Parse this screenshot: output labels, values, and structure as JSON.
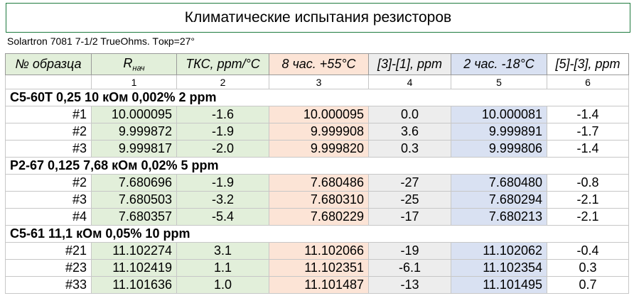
{
  "title": "Климатические испытания резисторов",
  "note": "Solartron 7081 7-1/2 TrueOhms. Tокр=27°",
  "headers": [
    "№ образца",
    "R",
    "ТКС, ppm/°C",
    "8 час. +55°C",
    "[3]-[1], ppm",
    "2 час. -18°C",
    "[5]-[3], ppm"
  ],
  "r_subscript": "нач",
  "column_numbers": [
    "1",
    "2",
    "3",
    "4",
    "5",
    "6"
  ],
  "groups": [
    {
      "label": "С5-60Т 0,25 10 кОм 0,002% 2 ppm",
      "rows": [
        [
          "#1",
          "10.000095",
          "-1.6",
          "10.000095",
          "0.0",
          "10.000081",
          "-1.4"
        ],
        [
          "#2",
          "9.999872",
          "-1.9",
          "9.999908",
          "3.6",
          "9.999891",
          "-1.7"
        ],
        [
          "#3",
          "9.999817",
          "-2.0",
          "9.999820",
          "0.3",
          "9.999806",
          "-1.4"
        ]
      ]
    },
    {
      "label": "Р2-67 0,125 7,68 кОм 0,02% 5 ppm",
      "rows": [
        [
          "#2",
          "7.680696",
          "-1.9",
          "7.680486",
          "-27",
          "7.680480",
          "-0.8"
        ],
        [
          "#3",
          "7.680503",
          "-3.2",
          "7.680310",
          "-25",
          "7.680294",
          "-2.1"
        ],
        [
          "#4",
          "7.680357",
          "-5.4",
          "7.680229",
          "-17",
          "7.680213",
          "-2.1"
        ]
      ]
    },
    {
      "label": "С5-61 11,1 кОм 0,05% 10 ppm",
      "rows": [
        [
          "#21",
          "11.102274",
          "3.1",
          "11.102066",
          "-19",
          "11.102062",
          "-0.4"
        ],
        [
          "#23",
          "11.102419",
          "1.1",
          "11.102351",
          "-6.1",
          "11.102354",
          "0.3"
        ],
        [
          "#33",
          "11.101636",
          "1.0",
          "11.101487",
          "-13",
          "11.101495",
          "0.7"
        ]
      ]
    }
  ],
  "colors": {
    "green": "#e2efda",
    "orange": "#fce4d6",
    "blue": "#d9e1f2",
    "gray": "#ededed",
    "title_border": "#1e7a3e"
  }
}
